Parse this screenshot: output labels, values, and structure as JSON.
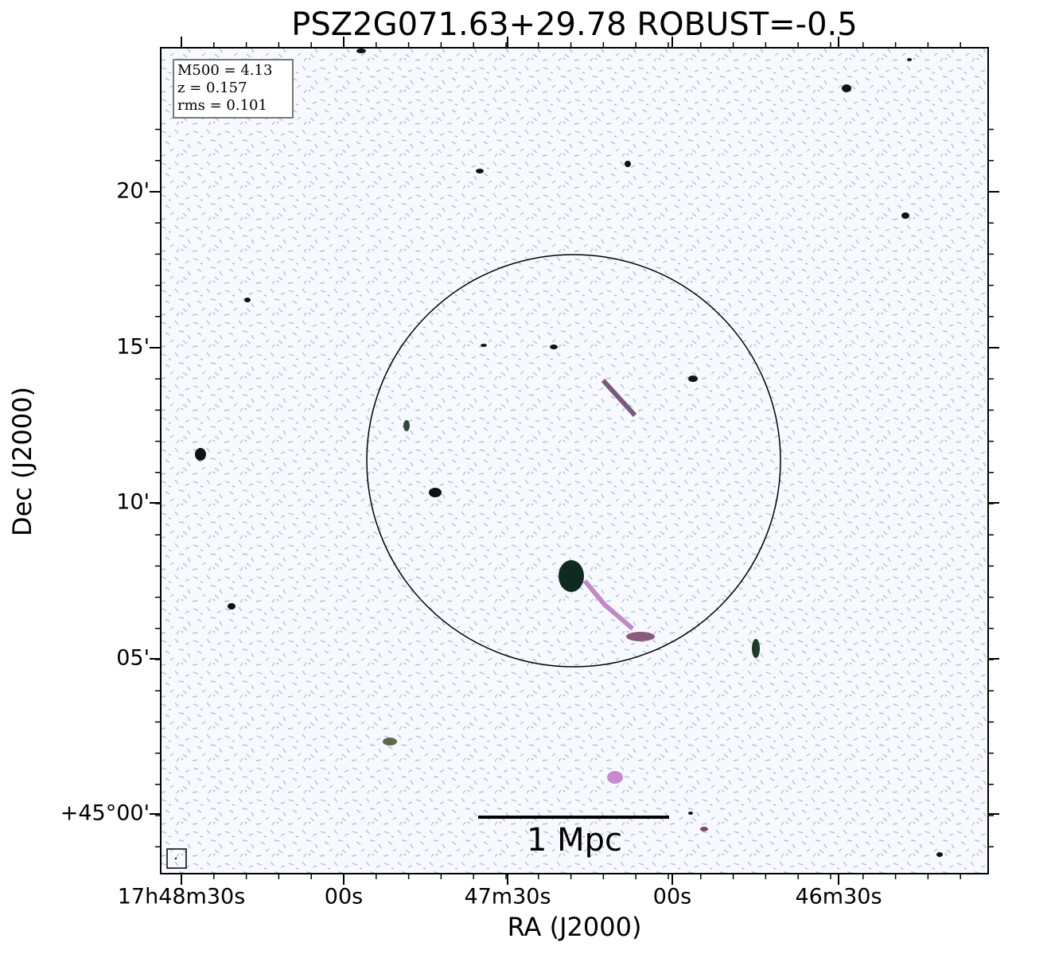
{
  "title": "PSZ2G071.63+29.78 ROBUST=-0.5",
  "x_axis": {
    "label": "RA (J2000)",
    "tick_labels": [
      "17h48m30s",
      "00s",
      "47m30s",
      "00s",
      "46m30s"
    ]
  },
  "y_axis": {
    "label": "Dec (J2000)",
    "tick_labels": [
      "20'",
      "15'",
      "10'",
      "05'",
      "+45°00'"
    ]
  },
  "info_box": [
    "M500 = 4.13",
    "z = 0.157",
    "rms = 0.101"
  ],
  "scale_bar": {
    "label": "1 Mpc"
  }
}
